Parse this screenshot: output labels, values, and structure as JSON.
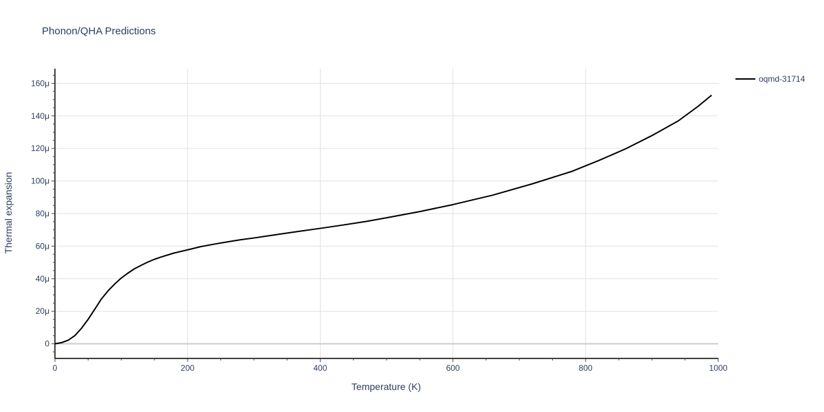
{
  "chart_data": {
    "type": "line",
    "title": "Phonon/QHA Predictions",
    "xlabel": "Temperature (K)",
    "ylabel": "Thermal expansion",
    "xlim": [
      0,
      1000
    ],
    "ylim": [
      -9e-06,
      0.000169
    ],
    "x_ticks": [
      0,
      200,
      400,
      600,
      800,
      1000
    ],
    "x_tick_labels": [
      "0",
      "200",
      "400",
      "600",
      "800",
      "1000"
    ],
    "y_ticks": [
      0,
      2e-05,
      4e-05,
      6e-05,
      8e-05,
      0.0001,
      0.00012,
      0.00014,
      0.00016
    ],
    "y_tick_labels": [
      "0",
      "20μ",
      "40μ",
      "60μ",
      "80μ",
      "100μ",
      "120μ",
      "140μ",
      "160μ"
    ],
    "grid": true,
    "legend_position": "top-right",
    "series": [
      {
        "name": "oqmd-31714",
        "color": "#000000",
        "x": [
          0,
          10,
          20,
          30,
          40,
          50,
          60,
          70,
          80,
          90,
          100,
          110,
          120,
          130,
          140,
          150,
          160,
          180,
          200,
          220,
          240,
          260,
          280,
          300,
          330,
          360,
          400,
          430,
          470,
          500,
          550,
          600,
          660,
          720,
          780,
          820,
          860,
          900,
          940,
          970,
          990
        ],
        "y": [
          0,
          7e-07,
          2.2e-06,
          5e-06,
          9.5e-06,
          1.5e-05,
          2.12e-05,
          2.75e-05,
          3.25e-05,
          3.67e-05,
          4.04e-05,
          4.34e-05,
          4.61e-05,
          4.82e-05,
          5.02e-05,
          5.19e-05,
          5.33e-05,
          5.58e-05,
          5.77e-05,
          5.97e-05,
          6.12e-05,
          6.26e-05,
          6.39e-05,
          6.5e-05,
          6.68e-05,
          6.86e-05,
          7.09e-05,
          7.27e-05,
          7.52e-05,
          7.74e-05,
          8.12e-05,
          8.55e-05,
          9.13e-05,
          9.83e-05,
          0.000106,
          0.0001126,
          0.0001197,
          0.0001279,
          0.000137,
          0.000146,
          0.0001527
        ]
      }
    ]
  }
}
